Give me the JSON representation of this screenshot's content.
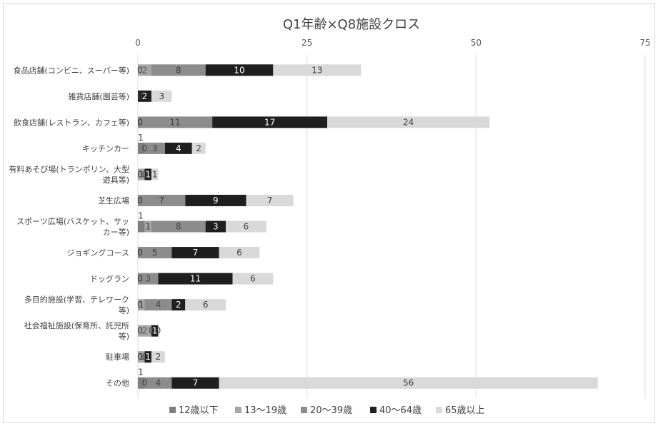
{
  "chart_data": {
    "type": "bar",
    "orientation": "horizontal",
    "stacked": true,
    "title": "Q1年齢×Q8施設クロス",
    "xlabel": "",
    "ylabel": "",
    "xlim": [
      0,
      75
    ],
    "xticks": [
      0,
      25,
      50,
      75
    ],
    "grid": true,
    "legend_position": "bottom",
    "categories": [
      "食品店舗(コンビニ、スーパー等)",
      "雑貨店舗(園芸等)",
      "飲食店舗(レストラン、カフェ等)",
      "キッチンカー",
      "有料あそび場(トランポリン、大型遊具等)",
      "芝生広場",
      "スポーツ広場(バスケット、サッカー等)",
      "ジョギングコース",
      "ドッグラン",
      "多目的施設(学習、テレワーク等)",
      "社会福祉施設(保育所、託児所等)",
      "駐車場",
      "その他"
    ],
    "category_lines": [
      [
        "食品店舗(コンビニ、スーパー等)"
      ],
      [
        "雑貨店舗(園芸等)"
      ],
      [
        "飲食店舗(レストラン、カフェ等)"
      ],
      [
        "キッチンカー"
      ],
      [
        "有料あそび場(トランポリン、大型",
        "遊具等)"
      ],
      [
        "芝生広場"
      ],
      [
        "スポーツ広場(バスケット、サッ",
        "カー等)"
      ],
      [
        "ジョギングコース"
      ],
      [
        "ドッグラン"
      ],
      [
        "多目的施設(学習、テレワーク",
        "等)"
      ],
      [
        "社会福祉施設(保育所、託児所",
        "等)"
      ],
      [
        "駐車場"
      ],
      [
        "その他"
      ]
    ],
    "series": [
      {
        "name": "12歳以下",
        "color": "#7f7f7f",
        "label_color": "#595959",
        "values": [
          0,
          0,
          0,
          1,
          0,
          0,
          1,
          0,
          0,
          0,
          0,
          0,
          1
        ]
      },
      {
        "name": "13〜19歳",
        "color": "#a6a6a6",
        "label_color": "#595959",
        "values": [
          2,
          0,
          0,
          0,
          1,
          0,
          1,
          0,
          0,
          1,
          2,
          1,
          0
        ]
      },
      {
        "name": "20〜39歳",
        "color": "#8c8c8c",
        "label_color": "#404040",
        "values": [
          8,
          0,
          11,
          3,
          0,
          7,
          8,
          5,
          3,
          4,
          0,
          0,
          4
        ]
      },
      {
        "name": "40〜64歳",
        "color": "#1f1f1f",
        "label_color": "#ffffff",
        "values": [
          10,
          2,
          17,
          4,
          1,
          9,
          3,
          7,
          11,
          2,
          1,
          1,
          7
        ]
      },
      {
        "name": "65歳以上",
        "color": "#d9d9d9",
        "label_color": "#404040",
        "values": [
          13,
          3,
          24,
          2,
          1,
          7,
          6,
          6,
          6,
          6,
          0,
          2,
          56
        ]
      }
    ]
  }
}
